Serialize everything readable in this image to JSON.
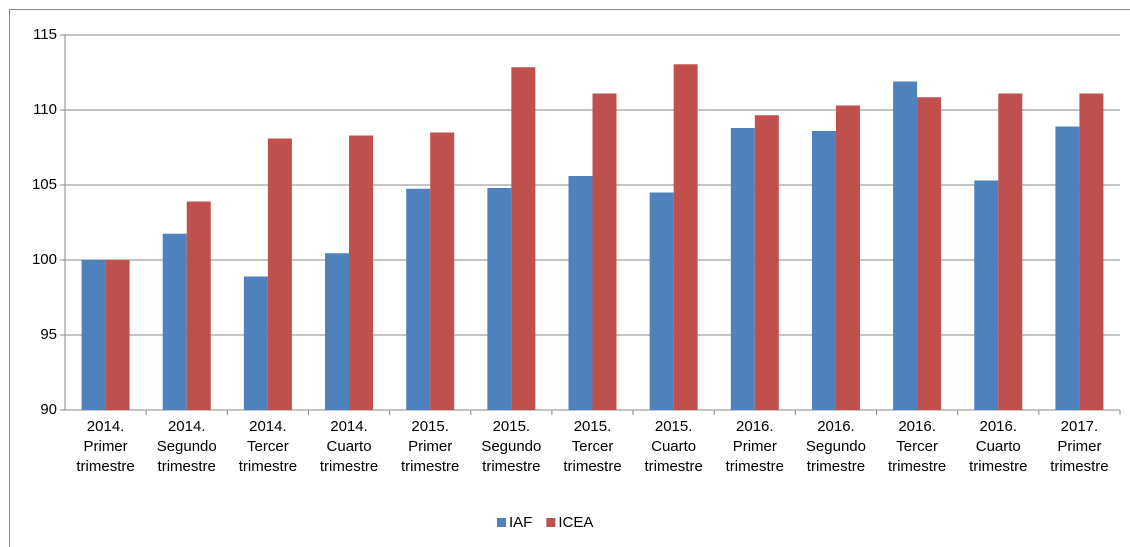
{
  "chart_data": {
    "type": "bar",
    "categories": [
      "2014. Primer trimestre",
      "2014. Segundo trimestre",
      "2014. Tercer trimestre",
      "2014. Cuarto trimestre",
      "2015. Primer trimestre",
      "2015. Segundo trimestre",
      "2015. Tercer trimestre",
      "2015. Cuarto trimestre",
      "2016. Primer trimestre",
      "2016. Segundo trimestre",
      "2016. Tercer trimestre",
      "2016. Cuarto trimestre",
      "2017. Primer trimestre"
    ],
    "series": [
      {
        "name": "IAF",
        "color": "#4f81bd",
        "values": [
          100,
          101.75,
          98.9,
          100.45,
          104.75,
          104.8,
          105.6,
          104.5,
          108.8,
          108.6,
          111.9,
          105.3,
          108.9
        ]
      },
      {
        "name": "ICEA",
        "color": "#c0504d",
        "values": [
          100,
          103.9,
          108.1,
          108.3,
          108.5,
          112.85,
          111.1,
          113.05,
          109.65,
          110.3,
          110.85,
          111.1,
          111.1
        ]
      }
    ],
    "ylim": [
      90,
      115
    ],
    "yticks": [
      90,
      95,
      100,
      105,
      110,
      115
    ],
    "grid": true,
    "legend": "bottom"
  }
}
